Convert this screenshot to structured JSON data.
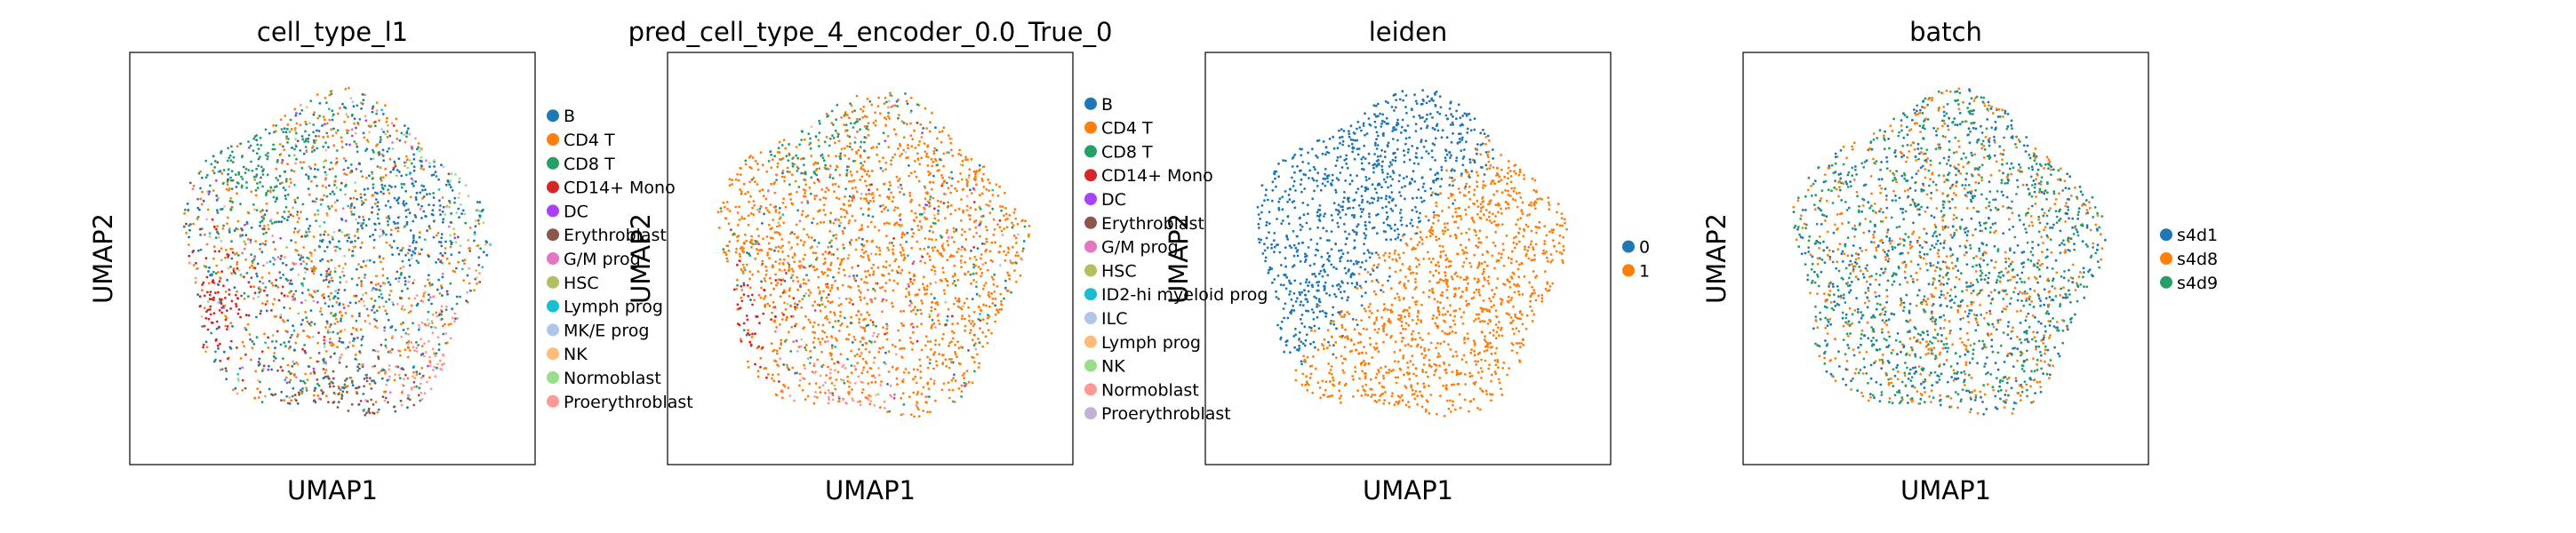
{
  "chart_data": [
    {
      "type": "scatter",
      "title": "cell_type_l1",
      "xlabel": "UMAP1",
      "ylabel": "UMAP2",
      "grid": false,
      "legend_position": "right",
      "categories": [
        {
          "name": "B",
          "color": "#1f77b4"
        },
        {
          "name": "CD4 T",
          "color": "#ff7f0e"
        },
        {
          "name": "CD8 T",
          "color": "#279e68"
        },
        {
          "name": "CD14+ Mono",
          "color": "#d62728"
        },
        {
          "name": "DC",
          "color": "#aa40fc"
        },
        {
          "name": "Erythroblast",
          "color": "#8c564b"
        },
        {
          "name": "G/M prog",
          "color": "#e377c2"
        },
        {
          "name": "HSC",
          "color": "#b5bd61"
        },
        {
          "name": "Lymph prog",
          "color": "#17becf"
        },
        {
          "name": "MK/E prog",
          "color": "#aec7e8"
        },
        {
          "name": "NK",
          "color": "#ffbb78"
        },
        {
          "name": "Normoblast",
          "color": "#98df8a"
        },
        {
          "name": "Proerythroblast",
          "color": "#ff9896"
        }
      ],
      "regions": [
        {
          "category": "B",
          "ux": 0.72,
          "uy": 0.6
        },
        {
          "category": "CD14+ Mono",
          "ux": 0.2,
          "uy": 0.36
        },
        {
          "category": "Proerythroblast",
          "ux": 0.78,
          "uy": 0.22
        },
        {
          "category": "Erythroblast",
          "ux": 0.55,
          "uy": 0.12
        },
        {
          "category": "CD8 T",
          "ux": 0.3,
          "uy": 0.72
        },
        {
          "category": "Normoblast",
          "ux": 0.88,
          "uy": 0.68
        }
      ]
    },
    {
      "type": "scatter",
      "title": "pred_cell_type_4_encoder_0.0_True_0",
      "xlabel": "UMAP1",
      "ylabel": "UMAP2",
      "grid": false,
      "legend_position": "right",
      "categories": [
        {
          "name": "B",
          "color": "#1f77b4"
        },
        {
          "name": "CD4 T",
          "color": "#ff7f0e"
        },
        {
          "name": "CD8 T",
          "color": "#279e68"
        },
        {
          "name": "CD14+ Mono",
          "color": "#d62728"
        },
        {
          "name": "DC",
          "color": "#aa40fc"
        },
        {
          "name": "Erythroblast",
          "color": "#8c564b"
        },
        {
          "name": "G/M prog",
          "color": "#e377c2"
        },
        {
          "name": "HSC",
          "color": "#b5bd61"
        },
        {
          "name": "ID2-hi myeloid prog",
          "color": "#17becf"
        },
        {
          "name": "ILC",
          "color": "#aec7e8"
        },
        {
          "name": "Lymph prog",
          "color": "#ffbb78"
        },
        {
          "name": "NK",
          "color": "#98df8a"
        },
        {
          "name": "Normoblast",
          "color": "#ff9896"
        },
        {
          "name": "Proerythroblast",
          "color": "#c5b0d5"
        }
      ],
      "regions": [
        {
          "category": "CD14+ Mono",
          "ux": 0.12,
          "uy": 0.32
        },
        {
          "category": "Normoblast",
          "ux": 0.45,
          "uy": 0.1
        },
        {
          "category": "CD8 T",
          "ux": 0.35,
          "uy": 0.85
        }
      ]
    },
    {
      "type": "scatter",
      "title": "leiden",
      "xlabel": "UMAP1",
      "ylabel": "UMAP2",
      "grid": false,
      "legend_position": "right",
      "categories": [
        {
          "name": "0",
          "color": "#1f77b4"
        },
        {
          "name": "1",
          "color": "#ff7f0e"
        }
      ],
      "split": "upper-left vs lower-right diagonal"
    },
    {
      "type": "scatter",
      "title": "batch",
      "xlabel": "UMAP1",
      "ylabel": "UMAP2",
      "grid": false,
      "legend_position": "right",
      "categories": [
        {
          "name": "s4d1",
          "color": "#1f77b4"
        },
        {
          "name": "s4d8",
          "color": "#ff7f0e"
        },
        {
          "name": "s4d9",
          "color": "#279e68"
        }
      ]
    }
  ]
}
